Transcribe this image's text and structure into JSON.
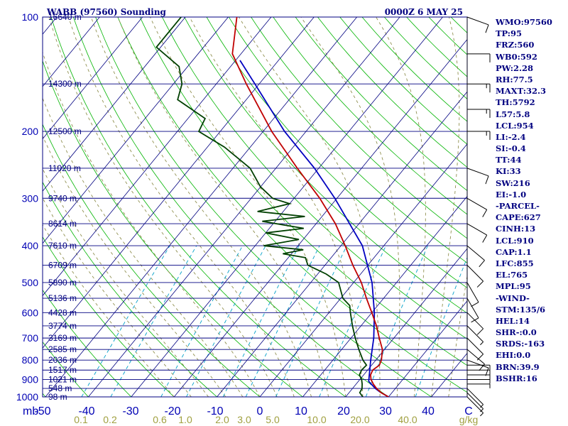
{
  "header": {
    "station": "WABB (97560) Sounding",
    "time": "0000Z  6 MAY 25"
  },
  "indices": [
    "WMO:97560",
    "TP:95",
    "FRZ:560",
    "WB0:592",
    "PW:2.28",
    "RH:77.5",
    "MAXT:32.3",
    "TH:5792",
    "L57:5.8",
    "LCL:954",
    "LI:-2.4",
    "SI:-0.4",
    "TT:44",
    "KI:33",
    "SW:216",
    "EI:-1.0",
    "-PARCEL-",
    "CAPE:627",
    "CINH:13",
    "LCL:910",
    "CAP:1.1",
    "LFC:855",
    "EL:765",
    "MPL:95",
    "-WIND-",
    "STM:135/6",
    "HEL:14",
    "SHR-:0.0",
    "SRDS:-163",
    "EHI:0.0",
    "BRN:39.9",
    "BSHR:16"
  ],
  "colors": {
    "isobar": "#000080",
    "isotherm": "#000080",
    "dry_adiabat": "#00b400",
    "moist_adiabat": "#909050",
    "mixing_ratio": "#00a0c8",
    "temperature": "#c00000",
    "dewpoint": "#004000",
    "parcel": "#0000c0",
    "wind": "#000000"
  },
  "chart_data": {
    "type": "line",
    "subtype": "skew-T log-p sounding",
    "pressure_unit": "mb",
    "temperature_unit": "C",
    "pressure_ticks": [
      "100",
      "200",
      "300",
      "400",
      "500",
      "600",
      "700",
      "800",
      "900",
      "1000"
    ],
    "temperature_ticks": [
      "-50",
      "-40",
      "-30",
      "-20",
      "-10",
      "0",
      "10",
      "20",
      "30",
      "40",
      "C"
    ],
    "mixing_ratio_ticks": [
      "0.1",
      "0.2",
      "0.6",
      "1.0",
      "2.0",
      "3.0",
      "5.0",
      "10.0",
      "20.0",
      "40.0",
      "g/kg"
    ],
    "x_unit_label": "mb",
    "height_labels": [
      {
        "p": 100,
        "label": "16640 m"
      },
      {
        "p": 150,
        "label": "14300 m"
      },
      {
        "p": 200,
        "label": "12500 m"
      },
      {
        "p": 250,
        "label": "11020 m"
      },
      {
        "p": 300,
        "label": "9740 m"
      },
      {
        "p": 350,
        "label": "8614 m"
      },
      {
        "p": 400,
        "label": "7610 m"
      },
      {
        "p": 450,
        "label": "6709 m"
      },
      {
        "p": 500,
        "label": "5890 m"
      },
      {
        "p": 550,
        "label": "5136 m"
      },
      {
        "p": 600,
        "label": "4428 m"
      },
      {
        "p": 650,
        "label": "3774 m"
      },
      {
        "p": 700,
        "label": "3169 m"
      },
      {
        "p": 750,
        "label": "2585 m"
      },
      {
        "p": 800,
        "label": "2036 m"
      },
      {
        "p": 850,
        "label": "1517 m"
      },
      {
        "p": 900,
        "label": "1021 m"
      },
      {
        "p": 950,
        "label": "548 m"
      },
      {
        "p": 1000,
        "label": "98 m"
      }
    ],
    "temperature": [
      [
        1000,
        30.0
      ],
      [
        975,
        27.5
      ],
      [
        950,
        25.6
      ],
      [
        925,
        24.0
      ],
      [
        900,
        22.6
      ],
      [
        875,
        21.6
      ],
      [
        850,
        21.2
      ],
      [
        825,
        21.8
      ],
      [
        800,
        21.3
      ],
      [
        750,
        19.5
      ],
      [
        700,
        16.6
      ],
      [
        650,
        13.6
      ],
      [
        600,
        10.0
      ],
      [
        550,
        6.0
      ],
      [
        500,
        1.8
      ],
      [
        450,
        -3.5
      ],
      [
        400,
        -9.0
      ],
      [
        350,
        -15.5
      ],
      [
        300,
        -24.0
      ],
      [
        250,
        -35.0
      ],
      [
        200,
        -48.0
      ],
      [
        150,
        -63.0
      ],
      [
        125,
        -72.0
      ],
      [
        100,
        -78.0
      ]
    ],
    "dewpoint": [
      [
        1000,
        24.0
      ],
      [
        975,
        22.5
      ],
      [
        950,
        22.2
      ],
      [
        925,
        21.4
      ],
      [
        900,
        20.4
      ],
      [
        875,
        19.0
      ],
      [
        850,
        18.6
      ],
      [
        825,
        18.8
      ],
      [
        800,
        17.0
      ],
      [
        750,
        14.0
      ],
      [
        700,
        11.0
      ],
      [
        650,
        8.0
      ],
      [
        600,
        5.0
      ],
      [
        575,
        3.5
      ],
      [
        550,
        0.5
      ],
      [
        500,
        -3.5
      ],
      [
        475,
        -8.0
      ],
      [
        450,
        -14.0
      ],
      [
        430,
        -16.0
      ],
      [
        420,
        -22.0
      ],
      [
        410,
        -18.0
      ],
      [
        400,
        -28.0
      ],
      [
        385,
        -21.0
      ],
      [
        370,
        -30.0
      ],
      [
        360,
        -22.0
      ],
      [
        345,
        -33.0
      ],
      [
        335,
        -24.0
      ],
      [
        325,
        -36.0
      ],
      [
        310,
        -30.0
      ],
      [
        300,
        -35.0
      ],
      [
        280,
        -40.0
      ],
      [
        250,
        -46.0
      ],
      [
        220,
        -56.0
      ],
      [
        200,
        -65.0
      ],
      [
        185,
        -66.0
      ],
      [
        165,
        -76.0
      ],
      [
        150,
        -78.0
      ],
      [
        135,
        -82.0
      ],
      [
        120,
        -91.0
      ],
      [
        100,
        -91.0
      ]
    ],
    "parcel": [
      [
        1000,
        30.0
      ],
      [
        970,
        27.0
      ],
      [
        950,
        25.3
      ],
      [
        910,
        22.4
      ],
      [
        850,
        20.5
      ],
      [
        800,
        18.8
      ],
      [
        700,
        15.3
      ],
      [
        600,
        10.6
      ],
      [
        500,
        4.3
      ],
      [
        400,
        -5.0
      ],
      [
        300,
        -20.5
      ],
      [
        250,
        -31.0
      ],
      [
        200,
        -45.0
      ],
      [
        150,
        -61.0
      ],
      [
        130,
        -69.0
      ]
    ],
    "wind_barbs": [
      {
        "p": 1000,
        "dir": 135,
        "spd": 5
      },
      {
        "p": 975,
        "dir": 135,
        "spd": 5
      },
      {
        "p": 950,
        "dir": 135,
        "spd": 5
      },
      {
        "p": 925,
        "dir": 90,
        "spd": 5
      },
      {
        "p": 900,
        "dir": 90,
        "spd": 5
      },
      {
        "p": 875,
        "dir": 90,
        "spd": 10
      },
      {
        "p": 850,
        "dir": 90,
        "spd": 10
      },
      {
        "p": 825,
        "dir": 90,
        "spd": 10
      },
      {
        "p": 800,
        "dir": 110,
        "spd": 10
      },
      {
        "p": 750,
        "dir": 130,
        "spd": 10
      },
      {
        "p": 700,
        "dir": 135,
        "spd": 10
      },
      {
        "p": 650,
        "dir": 135,
        "spd": 5
      },
      {
        "p": 600,
        "dir": 135,
        "spd": 10
      },
      {
        "p": 550,
        "dir": 150,
        "spd": 10
      },
      {
        "p": 500,
        "dir": 150,
        "spd": 10
      },
      {
        "p": 450,
        "dir": 135,
        "spd": 10
      },
      {
        "p": 400,
        "dir": 130,
        "spd": 10
      },
      {
        "p": 350,
        "dir": 120,
        "spd": 10
      },
      {
        "p": 300,
        "dir": 120,
        "spd": 10
      },
      {
        "p": 250,
        "dir": 110,
        "spd": 10
      },
      {
        "p": 200,
        "dir": 90,
        "spd": 15
      },
      {
        "p": 175,
        "dir": 90,
        "spd": 15
      },
      {
        "p": 150,
        "dir": 90,
        "spd": 15
      },
      {
        "p": 125,
        "dir": 90,
        "spd": 10
      },
      {
        "p": 100,
        "dir": 110,
        "spd": 10
      }
    ]
  }
}
